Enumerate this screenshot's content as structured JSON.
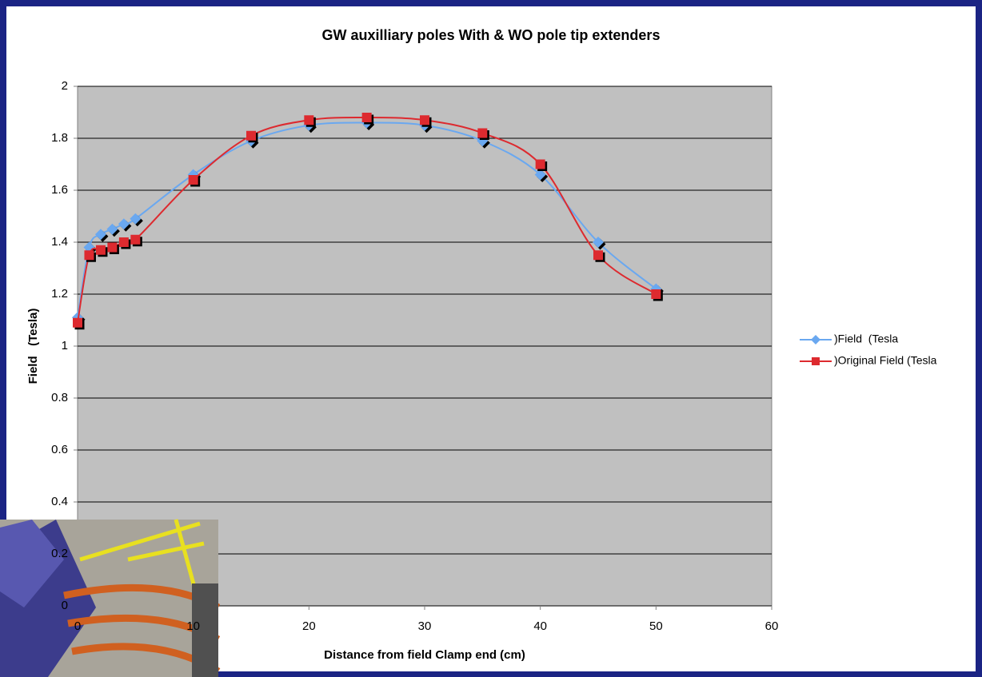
{
  "chart_data": {
    "type": "line",
    "title": "GW auxilliary poles With & WO pole tip extenders",
    "x_label": "Distance from field Clamp end (cm)",
    "y_label": "Field   (Tesla)",
    "x": [
      0,
      1,
      2,
      3,
      4,
      5,
      10,
      15,
      20,
      25,
      30,
      35,
      40,
      45,
      50
    ],
    "series": [
      {
        "name": ")Field  (Tesla",
        "color": "#6aa8f0",
        "marker": "diamond",
        "values": [
          1.11,
          1.38,
          1.43,
          1.45,
          1.47,
          1.49,
          1.66,
          1.79,
          1.85,
          1.86,
          1.85,
          1.79,
          1.66,
          1.4,
          1.22
        ]
      },
      {
        "name": ")Original Field (Tesla",
        "color": "#dd2a2f",
        "marker": "square",
        "values": [
          1.09,
          1.35,
          1.37,
          1.38,
          1.4,
          1.41,
          1.64,
          1.81,
          1.87,
          1.88,
          1.87,
          1.82,
          1.7,
          1.35,
          1.2
        ]
      }
    ],
    "xlim": [
      0,
      60
    ],
    "xticks": [
      0,
      10,
      20,
      30,
      40,
      50,
      60
    ],
    "ylim": [
      0,
      2
    ],
    "yticks": [
      0,
      0.2,
      0.4,
      0.6,
      0.8,
      1,
      1.2,
      1.4,
      1.6,
      1.8,
      2
    ],
    "grid": true,
    "legend": "right"
  }
}
